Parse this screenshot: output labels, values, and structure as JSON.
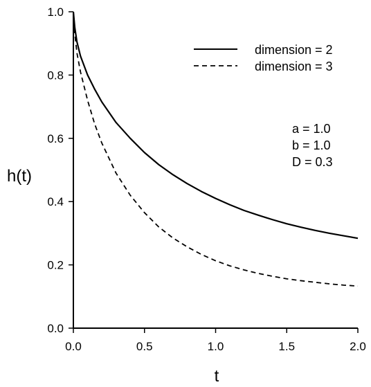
{
  "chart_data": {
    "type": "line",
    "title": "",
    "xlabel": "t",
    "ylabel": "h(t)",
    "xlim": [
      0,
      2.0
    ],
    "ylim": [
      0,
      1.0
    ],
    "xticks": [
      "0.0",
      "0.5",
      "1.0",
      "1.5",
      "2.0"
    ],
    "yticks": [
      "0.0",
      "0.2",
      "0.4",
      "0.6",
      "0.8",
      "1.0"
    ],
    "grid": false,
    "legend_position": "top-right",
    "series": [
      {
        "name": "dimension = 2",
        "line_style": "solid",
        "color": "#000000",
        "x": [
          0.0,
          0.01,
          0.025,
          0.05,
          0.1,
          0.15,
          0.2,
          0.3,
          0.4,
          0.5,
          0.6,
          0.7,
          0.8,
          0.9,
          1.0,
          1.1,
          1.2,
          1.3,
          1.4,
          1.5,
          1.6,
          1.7,
          1.8,
          1.9,
          2.0
        ],
        "y": [
          1.0,
          0.95,
          0.905,
          0.86,
          0.8,
          0.755,
          0.715,
          0.65,
          0.6,
          0.555,
          0.517,
          0.485,
          0.457,
          0.432,
          0.41,
          0.39,
          0.372,
          0.357,
          0.343,
          0.33,
          0.319,
          0.309,
          0.3,
          0.292,
          0.284
        ]
      },
      {
        "name": "dimension = 3",
        "line_style": "dashed",
        "color": "#000000",
        "x": [
          0.0,
          0.01,
          0.025,
          0.05,
          0.1,
          0.15,
          0.2,
          0.3,
          0.4,
          0.5,
          0.6,
          0.7,
          0.8,
          0.9,
          1.0,
          1.1,
          1.2,
          1.3,
          1.4,
          1.5,
          1.6,
          1.7,
          1.8,
          1.9,
          2.0
        ],
        "y": [
          1.0,
          0.93,
          0.87,
          0.81,
          0.72,
          0.645,
          0.585,
          0.49,
          0.42,
          0.365,
          0.32,
          0.285,
          0.257,
          0.233,
          0.213,
          0.197,
          0.184,
          0.173,
          0.164,
          0.156,
          0.15,
          0.145,
          0.14,
          0.136,
          0.133
        ]
      }
    ],
    "annotations": [
      "a = 1.0",
      "b = 1.0",
      "D = 0.3"
    ]
  }
}
